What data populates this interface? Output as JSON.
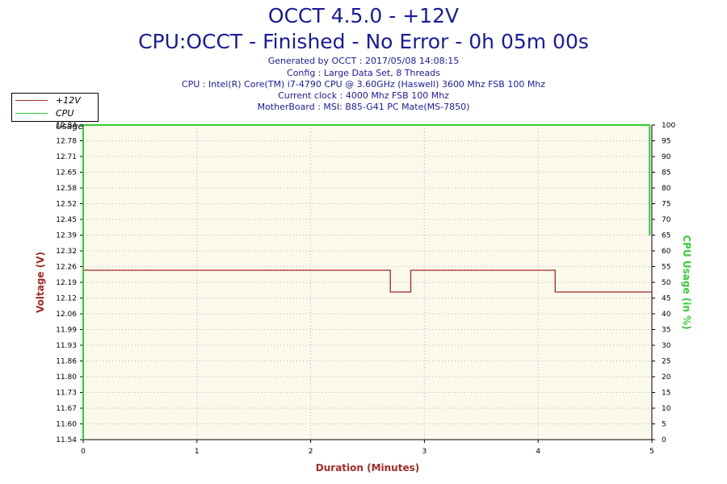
{
  "header": {
    "title": "OCCT 4.5.0 - +12V",
    "subtitle": "CPU:OCCT - Finished - No Error - 0h 05m 00s",
    "meta_lines": [
      "Generated by OCCT : 2017/05/08 14:08:15",
      "Config : Large Data Set, 8 Threads",
      "CPU : Intel(R) Core(TM) i7-4790 CPU @ 3.60GHz (Haswell) 3600 Mhz FSB 100 Mhz",
      "Current clock : 4000 Mhz FSB 100 Mhz",
      "MotherBoard : MSI: B85-G41 PC Mate(MS-7850)"
    ]
  },
  "colors": {
    "voltage": "#a52a2a",
    "cpu": "#33cc33",
    "plot_bg": "#fbf8ec",
    "grid": "#b8b8b8",
    "title": "#1a1a9e"
  },
  "chart_data": {
    "type": "line",
    "xlabel": "Duration (Minutes)",
    "ylabel": "Voltage (V)",
    "y2label": "CPU Usage (in %)",
    "xlim": [
      0,
      5
    ],
    "ylim": [
      11.54,
      12.84
    ],
    "y2lim": [
      0,
      100
    ],
    "x_ticks": [
      "0",
      "1",
      "2",
      "3",
      "4",
      "5"
    ],
    "y_ticks": [
      "12.84",
      "12.78",
      "12.71",
      "12.65",
      "12.58",
      "12.52",
      "12.45",
      "12.39",
      "12.32",
      "12.26",
      "12.19",
      "12.12",
      "12.06",
      "11.99",
      "11.93",
      "11.86",
      "11.80",
      "11.73",
      "11.67",
      "11.60",
      "11.54"
    ],
    "y2_ticks": [
      "100",
      "95",
      "90",
      "85",
      "80",
      "75",
      "70",
      "65",
      "60",
      "55",
      "50",
      "45",
      "40",
      "35",
      "30",
      "25",
      "20",
      "15",
      "10",
      "5",
      "0"
    ],
    "legend_position": "top-left",
    "grid": true,
    "series": [
      {
        "name": "+12V",
        "axis": "left",
        "x": [
          0,
          2.7,
          2.7,
          2.88,
          2.88,
          4.15,
          4.15,
          5.0
        ],
        "y": [
          12.24,
          12.24,
          12.15,
          12.15,
          12.24,
          12.24,
          12.15,
          12.15
        ]
      },
      {
        "name": "CPU Usage",
        "axis": "right",
        "x": [
          0,
          0,
          4.98,
          4.98
        ],
        "y": [
          0,
          100,
          100,
          65
        ]
      }
    ]
  }
}
